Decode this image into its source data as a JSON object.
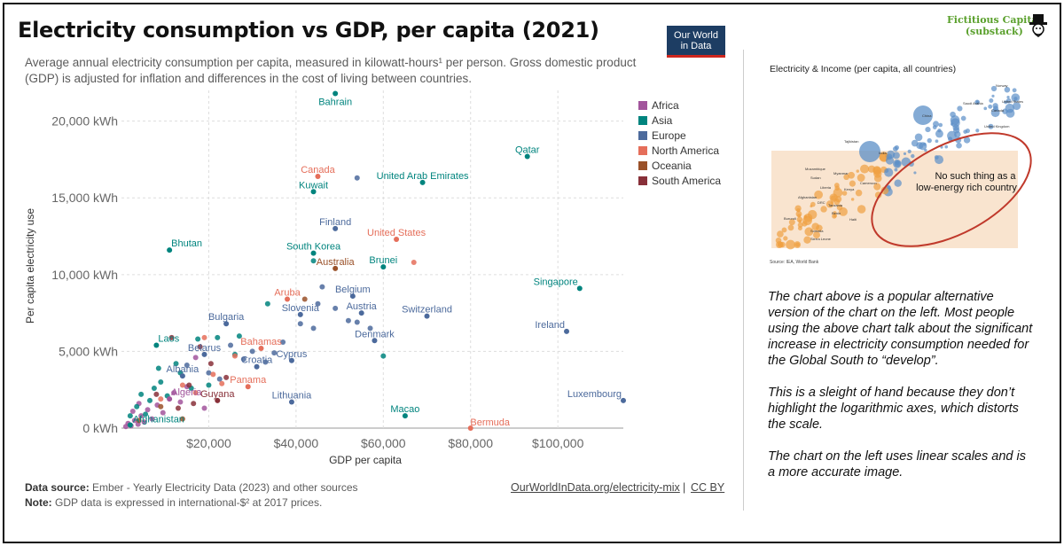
{
  "header": {
    "title": "Electricity consumption vs GDP, per capita (2021)",
    "subtitle": "Average annual electricity consumption per capita, measured in kilowatt-hours¹ per person. Gross domestic product (GDP) is adjusted for inflation and differences in the cost of living between countries.",
    "logo_line1": "Our World",
    "logo_line2": "in Data"
  },
  "brand": {
    "line1": "Fictitious Capital",
    "line2": "(substack)"
  },
  "footer": {
    "source_label": "Data source:",
    "source_text": "Ember - Yearly Electricity Data (2023) and other sources",
    "note_label": "Note:",
    "note_text": "GDP data is expressed in international-$² at 2017 prices.",
    "link": "OurWorldInData.org/electricity-mix",
    "separator": "|",
    "license": "CC BY"
  },
  "colors": {
    "Africa": "#a2559c",
    "Asia": "#00847e",
    "Europe": "#4c6a9c",
    "North America": "#e56e5a",
    "Oceania": "#9a5129",
    "South America": "#883039"
  },
  "chart_data": {
    "type": "scatter",
    "xlabel": "GDP per capita",
    "ylabel": "Per capita electricity use",
    "xlim": [
      0,
      115000
    ],
    "ylim": [
      0,
      22000
    ],
    "x_ticks": [
      20000,
      40000,
      60000,
      80000,
      100000
    ],
    "x_tick_labels": [
      "$20,000",
      "$40,000",
      "$60,000",
      "$80,000",
      "$100,000"
    ],
    "y_ticks": [
      0,
      5000,
      10000,
      15000,
      20000
    ],
    "y_tick_labels": [
      "0 kWh",
      "5,000 kWh",
      "10,000 kWh",
      "15,000 kWh",
      "20,000 kWh"
    ],
    "grid": true,
    "legend_position": "top-right",
    "legend": [
      "Africa",
      "Asia",
      "Europe",
      "North America",
      "Oceania",
      "South America"
    ],
    "labeled_points": [
      {
        "label": "Bahrain",
        "region": "Asia",
        "x": 49000,
        "y": 21800
      },
      {
        "label": "Qatar",
        "region": "Asia",
        "x": 93000,
        "y": 17700
      },
      {
        "label": "Canada",
        "region": "North America",
        "x": 45000,
        "y": 16400
      },
      {
        "label": "United Arab Emirates",
        "region": "Asia",
        "x": 69000,
        "y": 16000
      },
      {
        "label": "Kuwait",
        "region": "Asia",
        "x": 44000,
        "y": 15400
      },
      {
        "label": "Finland",
        "region": "Europe",
        "x": 49000,
        "y": 13000
      },
      {
        "label": "Bhutan",
        "region": "Asia",
        "x": 11000,
        "y": 11600
      },
      {
        "label": "United States",
        "region": "North America",
        "x": 63000,
        "y": 12300
      },
      {
        "label": "South Korea",
        "region": "Asia",
        "x": 44000,
        "y": 11400
      },
      {
        "label": "Brunei",
        "region": "Asia",
        "x": 60000,
        "y": 10500
      },
      {
        "label": "Australia",
        "region": "Oceania",
        "x": 49000,
        "y": 10400
      },
      {
        "label": "Singapore",
        "region": "Asia",
        "x": 105000,
        "y": 9100
      },
      {
        "label": "Aruba",
        "region": "North America",
        "x": 38000,
        "y": 8400
      },
      {
        "label": "Belgium",
        "region": "Europe",
        "x": 53000,
        "y": 8600
      },
      {
        "label": "Slovenia",
        "region": "Europe",
        "x": 41000,
        "y": 7400
      },
      {
        "label": "Austria",
        "region": "Europe",
        "x": 55000,
        "y": 7500
      },
      {
        "label": "Switzerland",
        "region": "Europe",
        "x": 70000,
        "y": 7300
      },
      {
        "label": "Bulgaria",
        "region": "Europe",
        "x": 24000,
        "y": 6800
      },
      {
        "label": "Ireland",
        "region": "Europe",
        "x": 102000,
        "y": 6300
      },
      {
        "label": "Denmark",
        "region": "Europe",
        "x": 58000,
        "y": 5700
      },
      {
        "label": "Laos",
        "region": "Asia",
        "x": 8000,
        "y": 5400
      },
      {
        "label": "Bahamas",
        "region": "North America",
        "x": 32000,
        "y": 5200
      },
      {
        "label": "Belarus",
        "region": "Europe",
        "x": 19000,
        "y": 4800
      },
      {
        "label": "Cyprus",
        "region": "Europe",
        "x": 39000,
        "y": 4400
      },
      {
        "label": "Croatia",
        "region": "Europe",
        "x": 31000,
        "y": 4000
      },
      {
        "label": "Albania",
        "region": "Europe",
        "x": 14000,
        "y": 3400
      },
      {
        "label": "Panama",
        "region": "North America",
        "x": 29000,
        "y": 2700
      },
      {
        "label": "Algeria",
        "region": "Africa",
        "x": 11000,
        "y": 1900
      },
      {
        "label": "Guyana",
        "region": "South America",
        "x": 22000,
        "y": 1800
      },
      {
        "label": "Luxembourg",
        "region": "Europe",
        "x": 115000,
        "y": 1800
      },
      {
        "label": "Lithuania",
        "region": "Europe",
        "x": 39000,
        "y": 1700
      },
      {
        "label": "Macao",
        "region": "Asia",
        "x": 65000,
        "y": 800
      },
      {
        "label": "Afghanistan",
        "region": "Asia",
        "x": 2000,
        "y": 200
      },
      {
        "label": "Bermuda",
        "region": "North America",
        "x": 80000,
        "y": 0
      }
    ],
    "other_points": [
      {
        "region": "Africa",
        "x": 1000,
        "y": 100
      },
      {
        "region": "Africa",
        "x": 1500,
        "y": 300
      },
      {
        "region": "Africa",
        "x": 2200,
        "y": 150
      },
      {
        "region": "Africa",
        "x": 3000,
        "y": 500
      },
      {
        "region": "Africa",
        "x": 3800,
        "y": 250
      },
      {
        "region": "Africa",
        "x": 4500,
        "y": 800
      },
      {
        "region": "Africa",
        "x": 5200,
        "y": 400
      },
      {
        "region": "Africa",
        "x": 6000,
        "y": 1200
      },
      {
        "region": "Africa",
        "x": 7000,
        "y": 600
      },
      {
        "region": "Africa",
        "x": 8200,
        "y": 1500
      },
      {
        "region": "Africa",
        "x": 9500,
        "y": 1000
      },
      {
        "region": "Africa",
        "x": 12000,
        "y": 2300
      },
      {
        "region": "Africa",
        "x": 13500,
        "y": 1700
      },
      {
        "region": "Africa",
        "x": 15000,
        "y": 2700
      },
      {
        "region": "Africa",
        "x": 17000,
        "y": 4600
      },
      {
        "region": "Africa",
        "x": 19000,
        "y": 1300
      },
      {
        "region": "Africa",
        "x": 2600,
        "y": 1100
      },
      {
        "region": "Africa",
        "x": 4000,
        "y": 1600
      },
      {
        "region": "Asia",
        "x": 2000,
        "y": 800
      },
      {
        "region": "Asia",
        "x": 3500,
        "y": 1400
      },
      {
        "region": "Asia",
        "x": 4500,
        "y": 2200
      },
      {
        "region": "Asia",
        "x": 6500,
        "y": 1800
      },
      {
        "region": "Asia",
        "x": 7500,
        "y": 2600
      },
      {
        "region": "Asia",
        "x": 9000,
        "y": 3000
      },
      {
        "region": "Asia",
        "x": 10500,
        "y": 2100
      },
      {
        "region": "Asia",
        "x": 12500,
        "y": 4200
      },
      {
        "region": "Asia",
        "x": 13500,
        "y": 3600
      },
      {
        "region": "Asia",
        "x": 16000,
        "y": 2600
      },
      {
        "region": "Asia",
        "x": 17500,
        "y": 5800
      },
      {
        "region": "Asia",
        "x": 22000,
        "y": 5900
      },
      {
        "region": "Asia",
        "x": 27000,
        "y": 6000
      },
      {
        "region": "Asia",
        "x": 33500,
        "y": 8100
      },
      {
        "region": "Asia",
        "x": 44000,
        "y": 10900
      },
      {
        "region": "Asia",
        "x": 60000,
        "y": 4700
      },
      {
        "region": "Asia",
        "x": 20000,
        "y": 2800
      },
      {
        "region": "Asia",
        "x": 5500,
        "y": 900
      },
      {
        "region": "Asia",
        "x": 26000,
        "y": 4800
      },
      {
        "region": "Asia",
        "x": 8500,
        "y": 3900
      },
      {
        "region": "Europe",
        "x": 15000,
        "y": 4100
      },
      {
        "region": "Europe",
        "x": 20000,
        "y": 3600
      },
      {
        "region": "Europe",
        "x": 22500,
        "y": 3200
      },
      {
        "region": "Europe",
        "x": 25000,
        "y": 5400
      },
      {
        "region": "Europe",
        "x": 28000,
        "y": 4500
      },
      {
        "region": "Europe",
        "x": 30000,
        "y": 5000
      },
      {
        "region": "Europe",
        "x": 33000,
        "y": 4300
      },
      {
        "region": "Europe",
        "x": 35000,
        "y": 4900
      },
      {
        "region": "Europe",
        "x": 37000,
        "y": 5600
      },
      {
        "region": "Europe",
        "x": 41000,
        "y": 6800
      },
      {
        "region": "Europe",
        "x": 44000,
        "y": 6500
      },
      {
        "region": "Europe",
        "x": 45000,
        "y": 8100
      },
      {
        "region": "Europe",
        "x": 46000,
        "y": 9200
      },
      {
        "region": "Europe",
        "x": 49000,
        "y": 7800
      },
      {
        "region": "Europe",
        "x": 52000,
        "y": 7000
      },
      {
        "region": "Europe",
        "x": 54000,
        "y": 6900
      },
      {
        "region": "Europe",
        "x": 57000,
        "y": 6500
      },
      {
        "region": "Europe",
        "x": 54000,
        "y": 16300
      },
      {
        "region": "North America",
        "x": 9000,
        "y": 1900
      },
      {
        "region": "North America",
        "x": 14000,
        "y": 2800
      },
      {
        "region": "North America",
        "x": 17000,
        "y": 2300
      },
      {
        "region": "North America",
        "x": 19000,
        "y": 5900
      },
      {
        "region": "North America",
        "x": 21000,
        "y": 3500
      },
      {
        "region": "North America",
        "x": 23000,
        "y": 2900
      },
      {
        "region": "North America",
        "x": 26000,
        "y": 4700
      },
      {
        "region": "North America",
        "x": 67000,
        "y": 10800
      },
      {
        "region": "Oceania",
        "x": 4000,
        "y": 500
      },
      {
        "region": "Oceania",
        "x": 9000,
        "y": 1400
      },
      {
        "region": "Oceania",
        "x": 14000,
        "y": 600
      },
      {
        "region": "Oceania",
        "x": 42000,
        "y": 8400
      },
      {
        "region": "South America",
        "x": 8000,
        "y": 2200
      },
      {
        "region": "South America",
        "x": 11500,
        "y": 5900
      },
      {
        "region": "South America",
        "x": 13000,
        "y": 1300
      },
      {
        "region": "South America",
        "x": 15500,
        "y": 2800
      },
      {
        "region": "South America",
        "x": 18000,
        "y": 5300
      },
      {
        "region": "South America",
        "x": 20500,
        "y": 4200
      },
      {
        "region": "South America",
        "x": 24000,
        "y": 3300
      },
      {
        "region": "South America",
        "x": 16500,
        "y": 1600
      }
    ]
  },
  "inset": {
    "title": "Electricity & Income (per capita, all countries)",
    "annotation_line1": "No such thing as a",
    "annotation_line2": "low-energy rich country",
    "source": "Source: IEA, World Bank",
    "labels": [
      "Norway",
      "Saudi Arabia",
      "United States",
      "Canada",
      "China",
      "United Kingdom",
      "India",
      "Tajikistan",
      "Mozambique",
      "Sudan",
      "Myanmar",
      "Liberia",
      "Afghanistan",
      "DRC",
      "Tanzania",
      "Burundi",
      "Somalia",
      "Sierra Leone",
      "Benin",
      "Haiti",
      "Kenya",
      "Cameroon"
    ]
  },
  "commentary": [
    "The chart above is a popular alternative version of the chart on the left. Most people using the above chart talk about the significant increase in electricity consumption needed for the Global South to “develop”.",
    "This is a sleight of hand because they don’t highlight the logarithmic axes, which distorts the scale.",
    "The chart on the left uses linear scales and is a more accurate image."
  ]
}
